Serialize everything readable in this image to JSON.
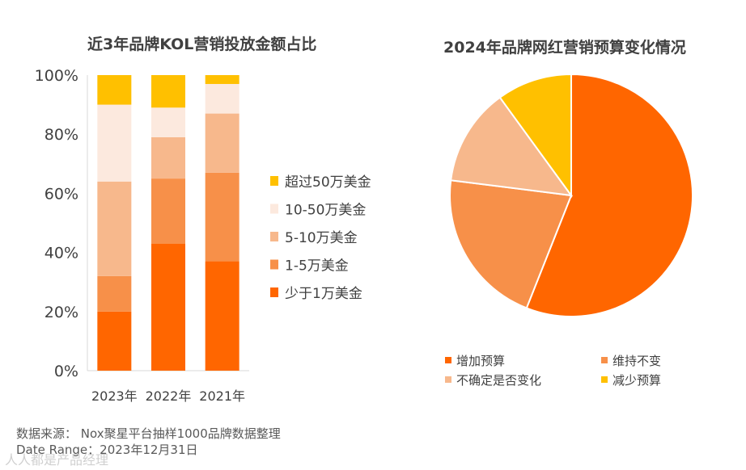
{
  "chart_data": [
    {
      "type": "bar",
      "stacked": true,
      "title": "近3年品牌KOL营销投放金额占比",
      "categories": [
        "2023年",
        "2022年",
        "2021年"
      ],
      "yticks": [
        "0%",
        "20%",
        "40%",
        "60%",
        "80%",
        "100%"
      ],
      "ylim": [
        0,
        100
      ],
      "series": [
        {
          "name": "少于1万美金",
          "color": "#FF6600",
          "values": [
            20,
            43,
            37
          ]
        },
        {
          "name": "1-5万美金",
          "color": "#F79049",
          "values": [
            12,
            22,
            30
          ]
        },
        {
          "name": "5-10万美金",
          "color": "#F7B88C",
          "values": [
            32,
            14,
            20
          ]
        },
        {
          "name": "10-50万美金",
          "color": "#FCE9DE",
          "values": [
            26,
            10,
            10
          ]
        },
        {
          "name": "超过50万美金",
          "color": "#FFC000",
          "values": [
            10,
            11,
            3
          ]
        }
      ],
      "legend_order": [
        "超过50万美金",
        "10-50万美金",
        "5-10万美金",
        "1-5万美金",
        "少于1万美金"
      ]
    },
    {
      "type": "pie",
      "title": "2024年品牌网红营销预算变化情况",
      "slices": [
        {
          "name": "增加预算",
          "color": "#FF6600",
          "value": 56
        },
        {
          "name": "维持不变",
          "color": "#F79049",
          "value": 21
        },
        {
          "name": "不确定是否变化",
          "color": "#F7B88C",
          "value": 13
        },
        {
          "name": "减少预算",
          "color": "#FFC000",
          "value": 10
        }
      ]
    }
  ],
  "footer": {
    "source": "数据来源：  Nox聚星平台抽样1000品牌数据整理",
    "date_range": "Date Range：2023年12月31日"
  },
  "watermark": "人人都是产品经理"
}
